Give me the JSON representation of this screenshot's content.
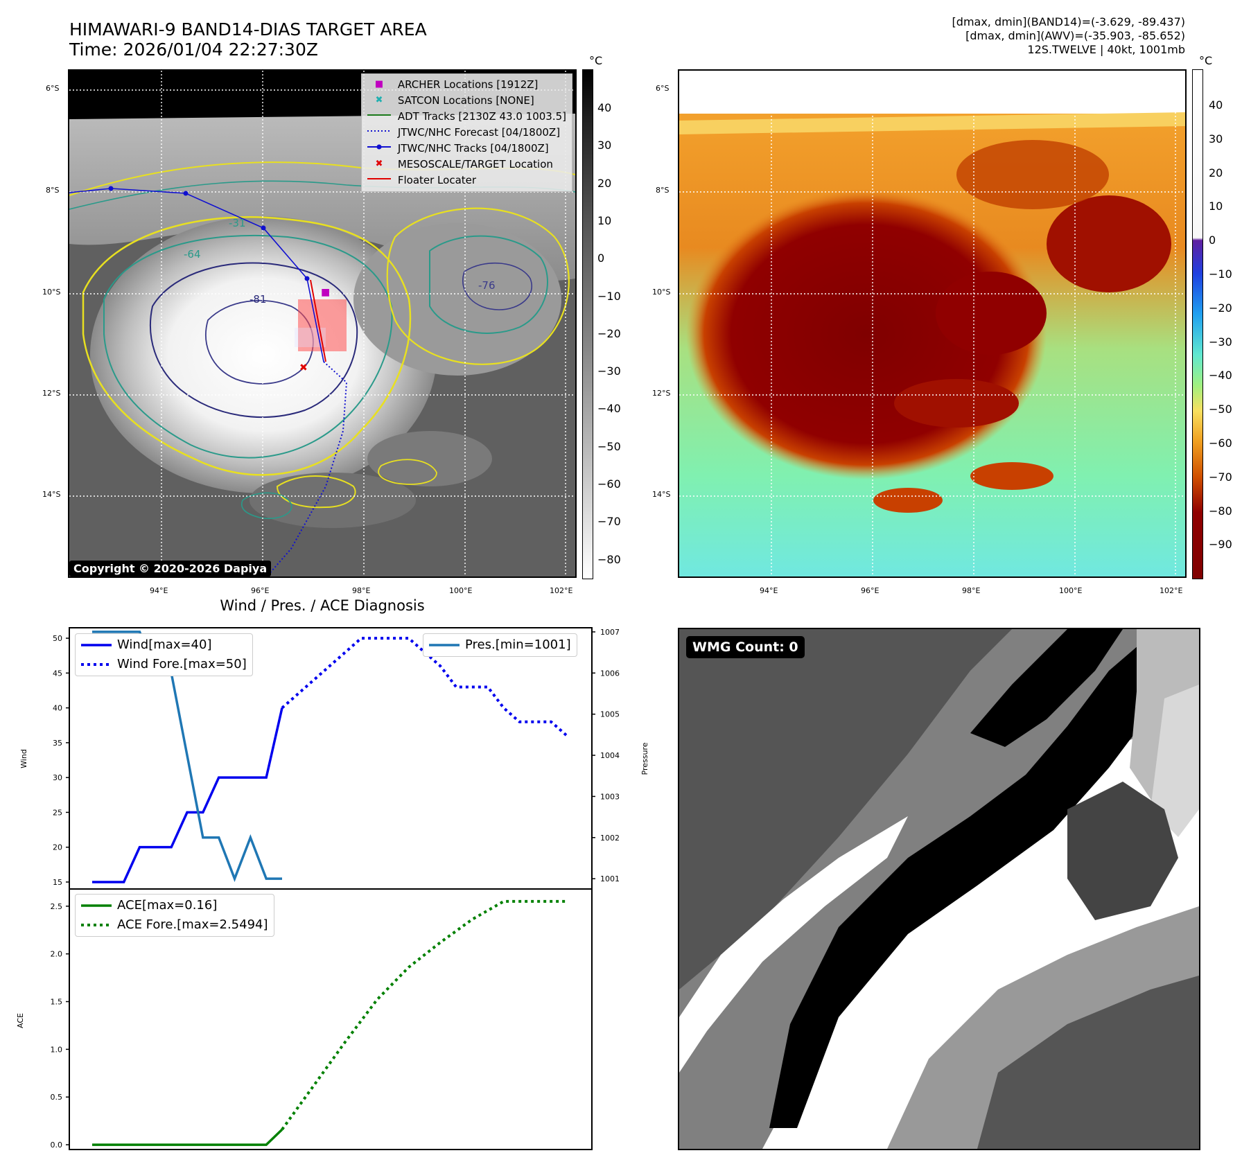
{
  "header": {
    "title_line1": "HIMAWARI-9 BAND14-DIAS TARGET AREA",
    "title_line2": "Time: 2026/01/04 22:27:30Z",
    "info_line1": "[dmax, dmin](BAND14)=(-3.629, -89.437)",
    "info_line2": "[dmax, dmin](AWV)=(-35.903, -85.652)",
    "info_line3": "12S.TWELVE | 40kt, 1001mb"
  },
  "map": {
    "lat_labels": [
      "6°S",
      "8°S",
      "10°S",
      "12°S",
      "14°S"
    ],
    "lon_labels": [
      "94°E",
      "96°E",
      "98°E",
      "100°E",
      "102°E"
    ],
    "copyright": "Copyright © 2020-2026 Dapiya",
    "contour_labels": [
      "-31",
      "-64",
      "-76",
      "-81"
    ],
    "legend": [
      {
        "label": "ARCHER Locations [1912Z]",
        "color": "#c000c0",
        "marker": "■"
      },
      {
        "label": "SATCON Locations [NONE]",
        "color": "#20b0b0",
        "marker": "✖"
      },
      {
        "label": "ADT Tracks [2130Z 43.0 1003.5]",
        "color": "#1a7a1a",
        "marker": "line"
      },
      {
        "label": "JTWC/NHC Forecast [04/1800Z]",
        "color": "#1010d0",
        "marker": "dotted"
      },
      {
        "label": "JTWC/NHC Tracks [04/1800Z]",
        "color": "#1010d0",
        "marker": "line-dot"
      },
      {
        "label": "MESOSCALE/TARGET Location",
        "color": "#e00000",
        "marker": "✖"
      },
      {
        "label": "Floater Locater",
        "color": "#e00000",
        "marker": "line"
      }
    ]
  },
  "colorbar_left": {
    "unit": "°C",
    "ticks": [
      "40",
      "30",
      "20",
      "10",
      "0",
      "−10",
      "−20",
      "−30",
      "−40",
      "−50",
      "−60",
      "−70",
      "−80"
    ]
  },
  "colorbar_right": {
    "unit": "°C",
    "ticks": [
      "40",
      "30",
      "20",
      "10",
      "0",
      "−10",
      "−20",
      "−30",
      "−40",
      "−50",
      "−60",
      "−70",
      "−80",
      "−90"
    ]
  },
  "chart_data": [
    {
      "type": "line",
      "title": "Wind / Pres. / ACE Diagnosis",
      "ylabel": "Wind",
      "ylabel_right": "Pressure",
      "ylim": [
        14,
        51.5
      ],
      "ylim_right": [
        1000.75,
        1007.1
      ],
      "wind_ticks": [
        15,
        20,
        25,
        30,
        35,
        40,
        45,
        50
      ],
      "pres_ticks": [
        1001,
        1002,
        1003,
        1004,
        1005,
        1006,
        1007
      ],
      "x_count": 31,
      "series": [
        {
          "name": "Wind",
          "label": "Wind[max=40]",
          "color": "#0000ee",
          "style": "solid",
          "x": [
            0,
            2,
            3,
            5,
            6,
            7,
            8,
            9,
            10,
            11,
            12
          ],
          "values": [
            15,
            15,
            20,
            20,
            25,
            25,
            30,
            30,
            30,
            30,
            40
          ]
        },
        {
          "name": "Wind Fore.",
          "label": "Wind Fore.[max=50]",
          "color": "#0000ee",
          "style": "dotted",
          "x": [
            12,
            13,
            14,
            15,
            16,
            17,
            18,
            19,
            20,
            21,
            22,
            23,
            24,
            25,
            26,
            27,
            28,
            29,
            30
          ],
          "values": [
            40,
            42,
            44,
            46,
            48,
            50,
            50,
            50,
            50,
            48,
            46,
            43,
            43,
            43,
            40,
            38,
            38,
            38,
            36
          ]
        },
        {
          "name": "Pres.",
          "label": "Pres.[min=1001]",
          "color": "#1f77b4",
          "style": "solid",
          "axis": "right",
          "x": [
            0,
            1,
            2,
            3,
            4,
            5,
            6,
            7,
            8,
            9,
            10,
            11,
            12
          ],
          "values": [
            1007,
            1007,
            1007,
            1007,
            1006,
            1006,
            1004,
            1002,
            1002,
            1001,
            1002,
            1001,
            1001
          ]
        }
      ]
    },
    {
      "type": "line",
      "ylabel": "ACE",
      "ylim": [
        -0.05,
        2.68
      ],
      "ace_ticks": [
        "0.0",
        "0.5",
        "1.0",
        "1.5",
        "2.0",
        "2.5"
      ],
      "x_count": 31,
      "series": [
        {
          "name": "ACE",
          "label": "ACE[max=0.16]",
          "color": "#008000",
          "style": "solid",
          "x": [
            0,
            11,
            12
          ],
          "values": [
            0,
            0,
            0.16
          ]
        },
        {
          "name": "ACE Fore.",
          "label": "ACE Fore.[max=2.5494]",
          "color": "#008000",
          "style": "dotted",
          "x": [
            12,
            14,
            16,
            18,
            20,
            22,
            24,
            26,
            28,
            30
          ],
          "values": [
            0.16,
            0.62,
            1.08,
            1.52,
            1.86,
            2.12,
            2.36,
            2.55,
            2.55,
            2.55
          ]
        }
      ]
    }
  ],
  "wmg": {
    "label": "WMG Count: 0"
  }
}
